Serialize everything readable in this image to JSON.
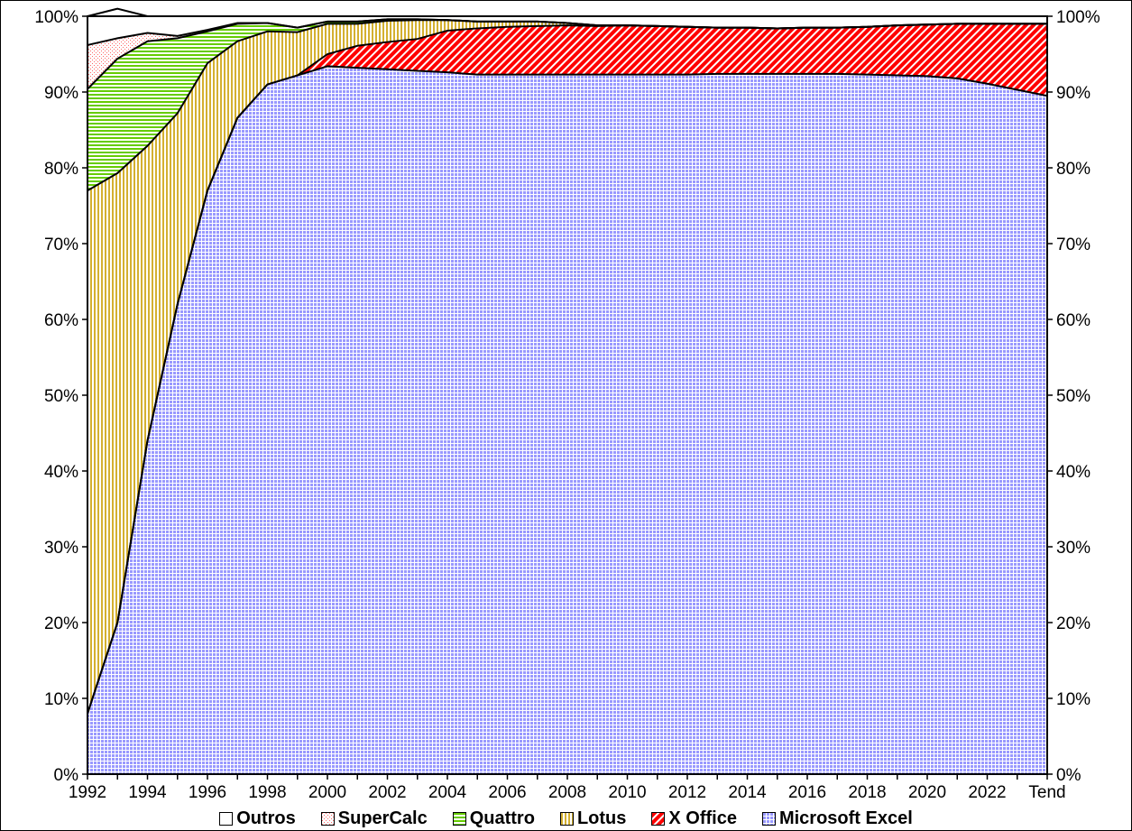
{
  "chart_data": {
    "type": "area",
    "stacked": true,
    "percent": true,
    "title": "",
    "xlabel": "",
    "ylabel": "",
    "ylim": [
      0,
      100
    ],
    "y_ticks": [
      "0%",
      "10%",
      "20%",
      "30%",
      "40%",
      "50%",
      "60%",
      "70%",
      "80%",
      "90%",
      "100%"
    ],
    "y_right_ticks": [
      "0%",
      "10%",
      "20%",
      "30%",
      "40%",
      "50%",
      "60%",
      "70%",
      "80%",
      "90%",
      "100%"
    ],
    "x_tick_labels": [
      "1992",
      "1994",
      "1996",
      "1998",
      "2000",
      "2002",
      "2004",
      "2006",
      "2008",
      "2010",
      "2012",
      "2014",
      "2016",
      "2018",
      "2020",
      "2022",
      "Tend"
    ],
    "categories": [
      "1992",
      "1993",
      "1994",
      "1995",
      "1996",
      "1997",
      "1998",
      "1999",
      "2000",
      "2001",
      "2002",
      "2003",
      "2004",
      "2005",
      "2006",
      "2007",
      "2008",
      "2009",
      "2010",
      "2011",
      "2012",
      "2013",
      "2014",
      "2015",
      "2016",
      "2017",
      "2018",
      "2019",
      "2020",
      "2021",
      "2022",
      "2023",
      "Tend"
    ],
    "grid": false,
    "legend_position": "bottom",
    "series": [
      {
        "name": "Microsoft Excel",
        "color": "#9999ff",
        "pattern": "grid",
        "values": [
          8,
          20,
          44,
          62,
          77,
          86.6,
          91,
          92.2,
          93.4,
          93.2,
          93,
          92.8,
          92.6,
          92.3,
          92.3,
          92.3,
          92.3,
          92.3,
          92.3,
          92.3,
          92.3,
          92.4,
          92.4,
          92.4,
          92.4,
          92.4,
          92.3,
          92.2,
          92.1,
          91.8,
          91.1,
          90.3,
          89.5
        ]
      },
      {
        "name": "X Office",
        "color": "#ff0000",
        "pattern": "diagonal",
        "values": [
          0,
          0,
          0,
          0,
          0,
          0,
          0,
          0,
          1.6,
          2.9,
          3.6,
          4.2,
          5.5,
          6.1,
          6.3,
          6.4,
          6.5,
          6.4,
          6.5,
          6.4,
          6.3,
          6.1,
          6.1,
          6,
          6.1,
          6.1,
          6.3,
          6.6,
          6.8,
          7.2,
          7.9,
          8.7,
          9.5
        ]
      },
      {
        "name": "Lotus",
        "color": "#d4b030",
        "pattern": "vertical",
        "values": [
          69,
          59.3,
          38.9,
          25.2,
          16.8,
          10.1,
          7,
          5.7,
          4,
          2.9,
          2.8,
          2.5,
          1.4,
          0.9,
          0.7,
          0.6,
          0.3,
          0.1,
          0,
          0,
          0,
          0,
          0,
          0,
          0,
          0,
          0,
          0,
          0,
          0,
          0,
          0,
          0
        ]
      },
      {
        "name": "Quattro",
        "color": "#66cc00",
        "pattern": "horizontal",
        "values": [
          13.4,
          15.1,
          13.8,
          9.9,
          4.2,
          2.3,
          1.1,
          0.6,
          0.3,
          0.3,
          0.2,
          0.1,
          0,
          0,
          0,
          0,
          0,
          0,
          0,
          0,
          0,
          0,
          0,
          0,
          0,
          0,
          0,
          0,
          0,
          0,
          0,
          0,
          0
        ]
      },
      {
        "name": "SuperCalc",
        "color": "#ff6666",
        "pattern": "dots",
        "values": [
          5.8,
          2.7,
          1.1,
          0.3,
          0.2,
          0.1,
          0,
          0,
          0,
          0,
          0,
          0,
          0,
          0,
          0,
          0,
          0,
          0,
          0,
          0,
          0,
          0,
          0,
          0,
          0,
          0,
          0,
          0,
          0,
          0,
          0,
          0,
          0
        ]
      },
      {
        "name": "Outros",
        "color": "#ffffff",
        "pattern": "solid",
        "values": [
          3.8,
          3.9,
          2.2,
          2.6,
          1.8,
          0.9,
          0.9,
          1.5,
          0.7,
          0.7,
          0.4,
          0.4,
          0.5,
          0.7,
          0.7,
          0.7,
          0.9,
          1.2,
          1.2,
          1.3,
          1.4,
          1.5,
          1.5,
          1.6,
          1.5,
          1.5,
          1.4,
          1.2,
          1.1,
          1,
          1,
          1,
          1
        ]
      }
    ]
  },
  "legend": {
    "items": [
      {
        "label": "Outros"
      },
      {
        "label": "SuperCalc"
      },
      {
        "label": "Quattro"
      },
      {
        "label": "Lotus"
      },
      {
        "label": "X Office"
      },
      {
        "label": "Microsoft Excel"
      }
    ]
  }
}
